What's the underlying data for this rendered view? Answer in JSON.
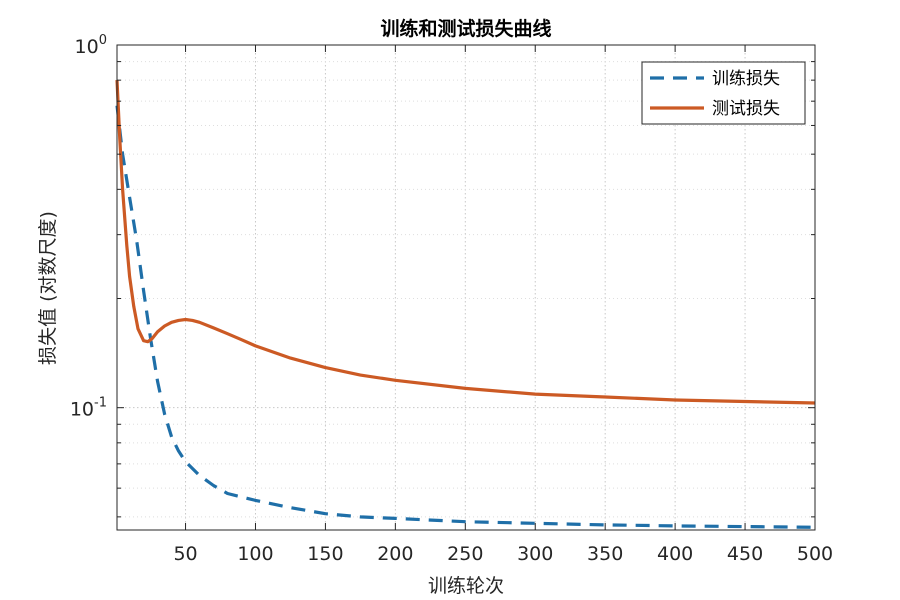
{
  "chart_data": {
    "type": "line",
    "title": "训练和测试损失曲线",
    "xlabel": "训练轮次",
    "ylabel": "损失值 (对数尺度)",
    "xlim": [
      1,
      500
    ],
    "ylim": [
      0.046,
      1.0
    ],
    "yscale": "log",
    "grid": true,
    "legend_position": "top-right",
    "xticks": [
      50,
      100,
      150,
      200,
      250,
      300,
      350,
      400,
      450,
      500
    ],
    "yticks": [
      {
        "value": 1.0,
        "base": "10",
        "exp": "0"
      },
      {
        "value": 0.1,
        "base": "10",
        "exp": "-1"
      }
    ],
    "series": [
      {
        "name": "训练损失",
        "color": "#1f6fa8",
        "style": "dashed",
        "x": [
          1,
          5,
          10,
          15,
          20,
          25,
          30,
          35,
          40,
          45,
          50,
          60,
          70,
          80,
          100,
          125,
          150,
          175,
          200,
          250,
          300,
          350,
          400,
          450,
          500
        ],
        "y": [
          0.68,
          0.5,
          0.38,
          0.29,
          0.21,
          0.155,
          0.118,
          0.096,
          0.083,
          0.076,
          0.071,
          0.065,
          0.061,
          0.058,
          0.0555,
          0.053,
          0.051,
          0.05,
          0.0495,
          0.0485,
          0.048,
          0.0475,
          0.0472,
          0.047,
          0.0468
        ]
      },
      {
        "name": "测试损失",
        "color": "#cc5a24",
        "style": "solid",
        "x": [
          1,
          3,
          5,
          8,
          10,
          13,
          16,
          20,
          23,
          26,
          30,
          35,
          40,
          45,
          50,
          55,
          60,
          70,
          80,
          90,
          100,
          125,
          150,
          175,
          200,
          250,
          300,
          350,
          400,
          450,
          500
        ],
        "y": [
          0.8,
          0.55,
          0.4,
          0.28,
          0.23,
          0.19,
          0.165,
          0.153,
          0.152,
          0.155,
          0.162,
          0.168,
          0.172,
          0.174,
          0.175,
          0.174,
          0.172,
          0.166,
          0.16,
          0.154,
          0.148,
          0.137,
          0.129,
          0.123,
          0.119,
          0.113,
          0.109,
          0.107,
          0.105,
          0.104,
          0.103
        ]
      }
    ]
  }
}
